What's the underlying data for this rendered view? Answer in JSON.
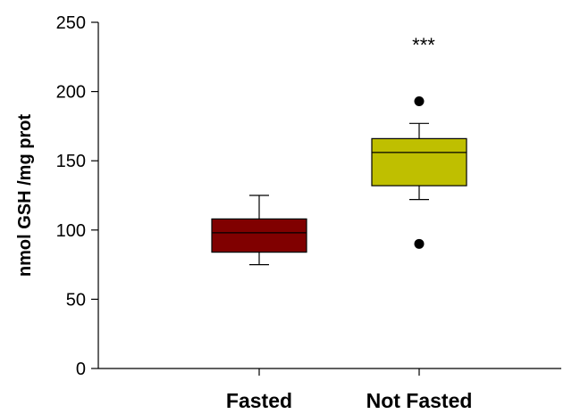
{
  "chart_data": {
    "type": "box",
    "ylabel": "nmol GSH /mg prot",
    "ylim": [
      0,
      250
    ],
    "yticks": [
      0,
      50,
      100,
      150,
      200,
      250
    ],
    "grid": false,
    "categories": [
      "Fasted",
      "Not Fasted"
    ],
    "boxes": [
      {
        "category": "Fasted",
        "whisker_low": 75,
        "q1": 84,
        "median": 98,
        "q3": 108,
        "whisker_high": 125,
        "outliers": [],
        "color": "#800000",
        "annotation": ""
      },
      {
        "category": "Not Fasted",
        "whisker_low": 122,
        "q1": 132,
        "median": 156,
        "q3": 166,
        "whisker_high": 177,
        "outliers": [
          90,
          193
        ],
        "color": "#bfbf00",
        "annotation": "***"
      }
    ]
  }
}
